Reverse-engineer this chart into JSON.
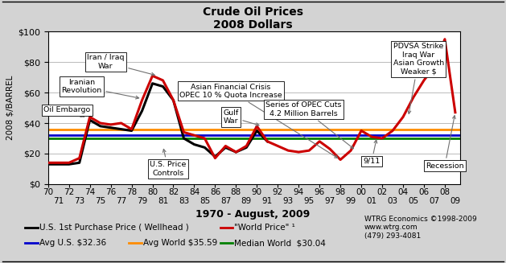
{
  "title": "Crude Oil Prices\n2008 Dollars",
  "xlabel": "1970 - August, 2009",
  "ylabel": "2008 $/BARREL",
  "bg_color": "#d3d3d3",
  "plot_bg_color": "#ffffff",
  "avg_us": 32.36,
  "avg_world": 35.59,
  "median_world": 30.04,
  "avg_us_color": "#0000cc",
  "avg_world_color": "#ff8c00",
  "median_world_color": "#008000",
  "us_price_color": "#000000",
  "world_price_color": "#cc0000",
  "ylim": [
    0,
    100
  ],
  "xlim": [
    1970,
    2009.5
  ],
  "us_price_data": {
    "years": [
      1970,
      1971,
      1972,
      1973,
      1974,
      1975,
      1976,
      1977,
      1978,
      1979,
      1980,
      1981,
      1982,
      1983,
      1984,
      1985,
      1986,
      1987,
      1988,
      1989,
      1990,
      1991
    ],
    "prices": [
      13,
      13,
      13,
      14,
      42,
      38,
      37,
      36,
      35,
      48,
      66,
      64,
      55,
      30,
      26,
      24,
      18,
      24,
      21,
      24,
      35,
      28
    ]
  },
  "world_price_data": {
    "years": [
      1970,
      1971,
      1972,
      1973,
      1974,
      1975,
      1976,
      1977,
      1978,
      1979,
      1980,
      1981,
      1982,
      1983,
      1984,
      1985,
      1986,
      1987,
      1988,
      1989,
      1990,
      1991,
      1992,
      1993,
      1994,
      1995,
      1996,
      1997,
      1998,
      1999,
      2000,
      2001,
      2002,
      2003,
      2004,
      2005,
      2006,
      2007,
      2008,
      2009
    ],
    "prices": [
      14,
      14,
      14,
      17,
      44,
      40,
      39,
      40,
      36,
      55,
      71,
      68,
      55,
      34,
      32,
      30,
      17,
      25,
      21,
      25,
      38,
      28,
      25,
      22,
      21,
      22,
      28,
      23,
      16,
      22,
      35,
      31,
      30,
      35,
      44,
      57,
      68,
      77,
      95,
      47
    ]
  },
  "yticks": [
    0,
    20,
    40,
    60,
    80,
    100
  ],
  "ytick_labels": [
    "$0",
    "$20",
    "$40",
    "$60",
    "$80",
    "$100"
  ],
  "xticks_top": [
    "70",
    "72",
    "74",
    "76",
    "78",
    "80",
    "82",
    "84",
    "86",
    "88",
    "90",
    "92",
    "94",
    "96",
    "98",
    "00",
    "02",
    "04",
    "06",
    "08"
  ],
  "xticks_bottom": [
    "71",
    "73",
    "75",
    "77",
    "79",
    "81",
    "83",
    "85",
    "87",
    "89",
    "91",
    "93",
    "95",
    "97",
    "99",
    "01",
    "03",
    "05",
    "07",
    "09"
  ],
  "watermark": "WTRG Economics ©1998-2009\nwww.wtrg.com\n(479) 293-4081",
  "legend_line1_left": "U.S. 1st Purchase Price ( Wellhead )",
  "legend_line1_right": "\"World Price\" ¹",
  "legend_avg_us": "Avg U.S. $32.36",
  "legend_avg_world": "Avg World $35.59",
  "legend_median_world": "Median World  $30.04"
}
